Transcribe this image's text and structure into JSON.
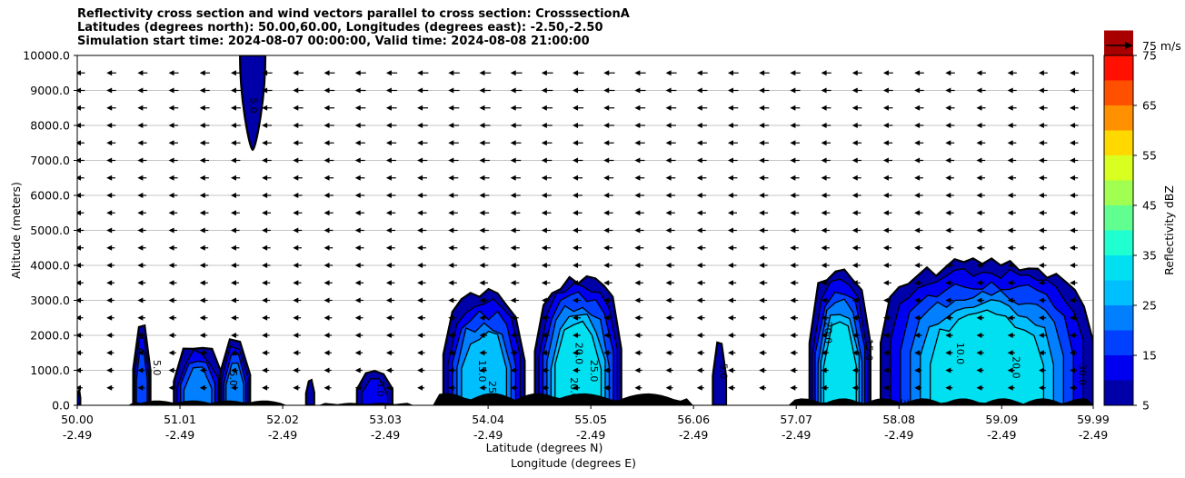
{
  "titles": {
    "line1": "Reflectivity cross section and wind vectors parallel to cross section: CrosssectionA",
    "line2": "Latitudes (degrees north): 50.00,60.00, Longitudes (degrees east): -2.50,-2.50",
    "line3": "Simulation start time: 2024-08-07 00:00:00, Valid time: 2024-08-08 21:00:00"
  },
  "chart_data": {
    "type": "contour",
    "xlabel_lat": "Latitude (degrees N)",
    "xlabel_lon": "Longitude (degrees E)",
    "ylabel": "Altitude (meters)",
    "xlim": [
      50.0,
      59.99
    ],
    "ylim": [
      0,
      10000
    ],
    "x_ticks": [
      {
        "lat": "50.00",
        "lon": "-2.49"
      },
      {
        "lat": "51.01",
        "lon": "-2.49"
      },
      {
        "lat": "52.02",
        "lon": "-2.49"
      },
      {
        "lat": "53.03",
        "lon": "-2.49"
      },
      {
        "lat": "54.04",
        "lon": "-2.49"
      },
      {
        "lat": "55.05",
        "lon": "-2.49"
      },
      {
        "lat": "56.06",
        "lon": "-2.49"
      },
      {
        "lat": "57.07",
        "lon": "-2.49"
      },
      {
        "lat": "58.08",
        "lon": "-2.49"
      },
      {
        "lat": "59.09",
        "lon": "-2.49"
      },
      {
        "lat": "59.99",
        "lon": "-2.49"
      }
    ],
    "y_ticks": [
      "0.0",
      "1000.0",
      "2000.0",
      "3000.0",
      "4000.0",
      "5000.0",
      "6000.0",
      "7000.0",
      "8000.0",
      "9000.0",
      "10000.0"
    ],
    "grid": "horizontal",
    "colorbar": {
      "label": "Reflectivity dBZ",
      "levels": [
        5,
        10,
        15,
        20,
        25,
        30,
        35,
        40,
        45,
        50,
        55,
        60,
        65,
        70,
        75
      ],
      "tick_labels": [
        "5",
        "15",
        "25",
        "35",
        "45",
        "55",
        "65",
        "75"
      ],
      "colors": [
        "#0000a8",
        "#0000f0",
        "#0040ff",
        "#0080ff",
        "#00bfff",
        "#00e0f0",
        "#20ffd0",
        "#60ff90",
        "#a0ff50",
        "#d8ff20",
        "#ffd800",
        "#ff9000",
        "#ff5000",
        "#ff1000",
        "#a80000"
      ]
    },
    "wind_key": "75 m/s",
    "cells": [
      {
        "x0": 50.0,
        "x1": 50.03,
        "top": 400,
        "peak_dbz": 5
      },
      {
        "x0": 50.55,
        "x1": 50.72,
        "top": 2300,
        "peak_dbz": 15
      },
      {
        "x0": 50.95,
        "x1": 51.42,
        "top": 1650,
        "peak_dbz": 20
      },
      {
        "x0": 51.4,
        "x1": 51.7,
        "top": 1900,
        "peak_dbz": 20
      },
      {
        "x0": 51.6,
        "x1": 51.85,
        "top": 10000,
        "bottom": 7300,
        "peak_dbz": 5
      },
      {
        "x0": 52.25,
        "x1": 52.33,
        "top": 700,
        "peak_dbz": 5
      },
      {
        "x0": 52.75,
        "x1": 53.1,
        "top": 1000,
        "peak_dbz": 10
      },
      {
        "x0": 53.6,
        "x1": 54.4,
        "top": 3200,
        "peak_dbz": 25
      },
      {
        "x0": 54.5,
        "x1": 55.35,
        "top": 3600,
        "peak_dbz": 30
      },
      {
        "x0": 56.25,
        "x1": 56.38,
        "top": 1850,
        "peak_dbz": 5
      },
      {
        "x0": 57.2,
        "x1": 57.8,
        "top": 3900,
        "peak_dbz": 30
      },
      {
        "x0": 57.9,
        "x1": 59.99,
        "top": 4100,
        "peak_dbz": 30
      }
    ],
    "contour_labels": [
      "5.0",
      "10.0",
      "15.0",
      "20.0",
      "25.0",
      "30.0"
    ]
  }
}
